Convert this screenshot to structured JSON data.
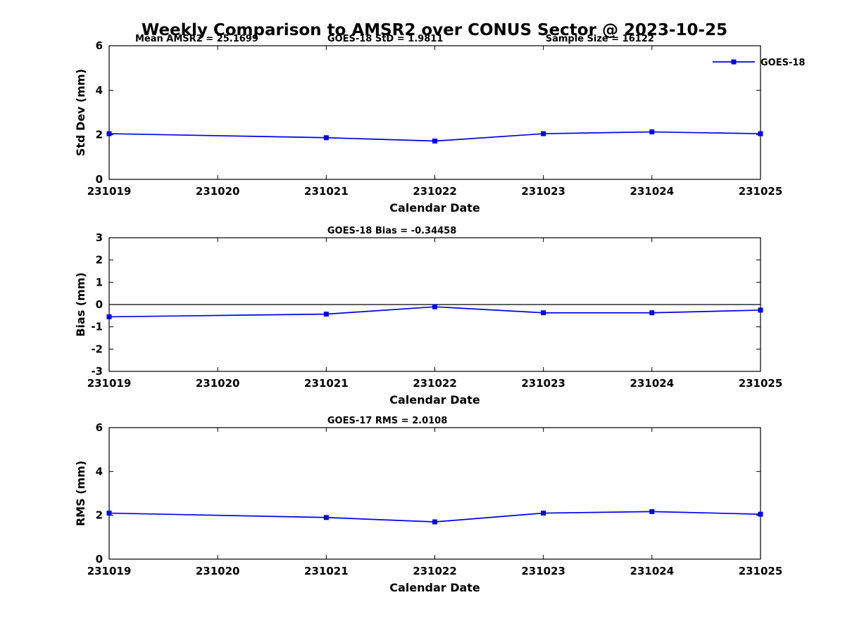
{
  "title": "Weekly Comparison to AMSR2 over CONUS Sector @ 2023-10-25",
  "accent_color": "#0000ee",
  "chart_data": [
    {
      "type": "line",
      "title_annotations": [
        {
          "text": "Mean AMSR2 = 25.1699",
          "xfrac": 0.04
        },
        {
          "text": "GOES-18 StD = 1.9811",
          "xfrac": 0.335
        },
        {
          "text": "Sample Size = 16122",
          "xfrac": 0.67
        }
      ],
      "xlabel": "Calendar Date",
      "ylabel": "Std Dev (mm)",
      "xticks": [
        "231019",
        "231020",
        "231021",
        "231022",
        "231023",
        "231024",
        "231025"
      ],
      "ylim": [
        0,
        6
      ],
      "yticks": [
        0,
        2,
        4,
        6
      ],
      "x": [
        231019,
        231021,
        231022,
        231023,
        231024,
        231025
      ],
      "series": [
        {
          "name": "GOES-18",
          "color": "#0000ee",
          "values": [
            2.05,
            1.87,
            1.72,
            2.05,
            2.13,
            2.05
          ]
        }
      ],
      "legend": {
        "show": true,
        "label": "GOES-18",
        "position": "top-right-outside"
      },
      "zero_line": false,
      "grid": false
    },
    {
      "type": "line",
      "title_annotations": [
        {
          "text": "GOES-18 Bias  = -0.34458",
          "xfrac": 0.335
        }
      ],
      "xlabel": "Calendar Date",
      "ylabel": "Bias (mm)",
      "xticks": [
        "231019",
        "231020",
        "231021",
        "231022",
        "231023",
        "231024",
        "231025"
      ],
      "ylim": [
        -3,
        3
      ],
      "yticks": [
        -3,
        -2,
        -1,
        0,
        1,
        2,
        3
      ],
      "x": [
        231019,
        231021,
        231022,
        231023,
        231024,
        231025
      ],
      "series": [
        {
          "name": "GOES-18",
          "color": "#0000ee",
          "values": [
            -0.55,
            -0.43,
            -0.1,
            -0.37,
            -0.37,
            -0.25
          ]
        }
      ],
      "legend": {
        "show": false,
        "label": "GOES-18"
      },
      "zero_line": true,
      "grid": false
    },
    {
      "type": "line",
      "title_annotations": [
        {
          "text": "GOES-17 RMS = 2.0108",
          "xfrac": 0.335
        }
      ],
      "xlabel": "Calendar Date",
      "ylabel": "RMS (mm)",
      "xticks": [
        "231019",
        "231020",
        "231021",
        "231022",
        "231023",
        "231024",
        "231025"
      ],
      "ylim": [
        0,
        6
      ],
      "yticks": [
        0,
        2,
        4,
        6
      ],
      "x": [
        231019,
        231021,
        231022,
        231023,
        231024,
        231025
      ],
      "series": [
        {
          "name": "GOES-18",
          "color": "#0000ee",
          "values": [
            2.1,
            1.9,
            1.7,
            2.1,
            2.17,
            2.05
          ]
        }
      ],
      "legend": {
        "show": false,
        "label": "GOES-18"
      },
      "zero_line": false,
      "grid": false
    }
  ]
}
